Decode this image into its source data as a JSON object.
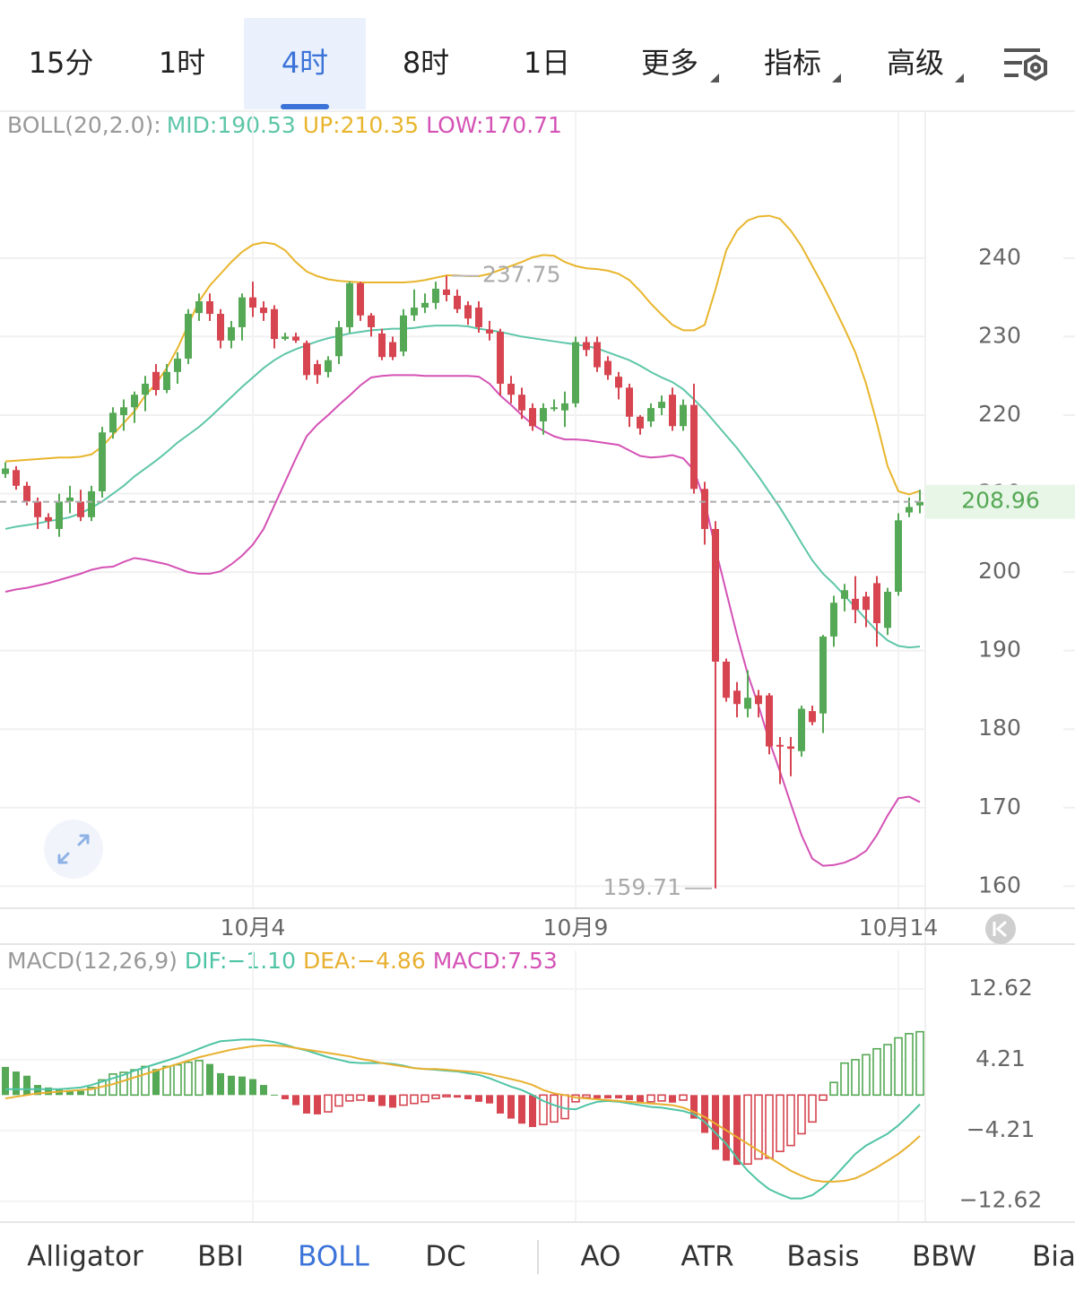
{
  "tabs": [
    "15分",
    "1时",
    "4时",
    "8时",
    "1日",
    "更多",
    "指标",
    "高级"
  ],
  "active_tab": 2,
  "indicator_tabs": [
    "Alligator",
    "BBI",
    "BOLL",
    "DC",
    "AO",
    "ATR",
    "Basis",
    "BBW",
    "Bia"
  ],
  "active_indicator": 2,
  "chart_data": [
    {
      "type": "candlestick",
      "legend_title": "BOLL(20,2.0):",
      "up_color": "#55a855",
      "down_color": "#d64550",
      "categories": [
        null,
        null,
        null,
        null,
        null,
        null,
        null,
        null,
        null,
        null,
        null,
        null,
        null,
        null,
        null,
        null,
        null,
        null,
        null,
        null,
        null,
        null,
        null,
        "10月4",
        null,
        null,
        null,
        null,
        null,
        null,
        null,
        null,
        null,
        null,
        null,
        null,
        null,
        null,
        null,
        null,
        null,
        null,
        null,
        null,
        null,
        null,
        null,
        null,
        null,
        null,
        null,
        null,
        null,
        "10月9",
        null,
        null,
        null,
        null,
        null,
        null,
        null,
        null,
        null,
        null,
        null,
        null,
        null,
        null,
        null,
        null,
        null,
        null,
        null,
        null,
        null,
        null,
        null,
        null,
        null,
        null,
        null,
        null,
        null,
        "10月14",
        null,
        null
      ],
      "open": [
        212.5,
        213,
        211,
        209,
        207,
        205.5,
        209,
        209,
        207,
        210.3,
        217.8,
        220,
        221,
        222.6,
        225.5,
        223.2,
        225.5,
        227.2,
        233,
        234.5,
        232.9,
        229.5,
        231.2,
        235,
        233.7,
        233.5,
        229.7,
        230,
        229.2,
        226.5,
        225.5,
        227.5,
        231.2,
        236.8,
        232.7,
        230.4,
        229.3,
        228.1,
        232.7,
        233.7,
        234.3,
        236,
        235.2,
        234,
        233.7,
        230.9,
        230.6,
        224,
        222.6,
        220.9,
        219.2,
        220.8,
        220.6,
        221.5,
        229.3,
        229.3,
        226.9,
        224.9,
        223.5,
        219.8,
        219.2,
        220.9,
        222.6,
        218.6,
        221.3,
        210.6,
        205.5,
        188.6,
        184.9,
        182.6,
        184.3,
        184.3,
        178,
        177.8,
        177.2,
        182.3,
        182,
        191.8,
        196.6,
        196.6,
        196.9,
        198.6,
        192.9,
        197.5,
        207.6,
        208.5
      ],
      "high": [
        214,
        213.5,
        211.5,
        209.5,
        207.5,
        210,
        211,
        210.5,
        211,
        218.5,
        221,
        222,
        223,
        225,
        226.5,
        226.5,
        228,
        233.5,
        235.5,
        235.5,
        233.5,
        232,
        235.5,
        237,
        234.5,
        234,
        230.5,
        230.5,
        229.5,
        227,
        227.5,
        232,
        237,
        237,
        233,
        231,
        230,
        233.5,
        236,
        235.5,
        237,
        237.75,
        236,
        234.5,
        234.5,
        232,
        231,
        225,
        223.5,
        221.5,
        221.5,
        222,
        223,
        230,
        230,
        230,
        227.5,
        225.5,
        224,
        220,
        221.5,
        222.5,
        223.5,
        222,
        224,
        211.5,
        206.5,
        189,
        186,
        187.5,
        185,
        184.6,
        179,
        179,
        183,
        183,
        192,
        197,
        198.5,
        199.5,
        197.5,
        199.5,
        198,
        207.5,
        209.5,
        210.5
      ],
      "low": [
        212,
        210.5,
        208.5,
        205.5,
        205.5,
        204.5,
        207.5,
        206.5,
        206.5,
        209.5,
        217,
        218,
        219,
        220.5,
        222.5,
        222.8,
        224,
        226.5,
        232,
        232,
        228.5,
        228.5,
        229.5,
        232.5,
        232,
        228.5,
        229.5,
        229.2,
        224.5,
        224,
        224.8,
        226.5,
        230.5,
        232,
        230,
        227,
        227,
        227.5,
        232,
        233,
        233.5,
        234.5,
        233,
        231.5,
        230.5,
        229.5,
        222.5,
        221.5,
        219.5,
        218,
        217.5,
        220.5,
        218.5,
        221,
        227.5,
        225.5,
        224.5,
        222,
        218.5,
        217.5,
        218.5,
        220,
        218,
        218,
        210,
        203.5,
        159.71,
        183.5,
        181.5,
        181.5,
        181.5,
        176.8,
        173,
        174,
        176.5,
        180.5,
        179.5,
        190.5,
        195,
        193.5,
        193,
        190.5,
        192,
        197,
        207,
        207.5
      ],
      "close": [
        213.2,
        211,
        209,
        207,
        206.5,
        209,
        209.5,
        207,
        210.3,
        217.8,
        220.3,
        221,
        222.6,
        224,
        223.2,
        225.5,
        227.2,
        232.9,
        234.5,
        232.9,
        229.5,
        231.2,
        235,
        233.7,
        233,
        229.7,
        230,
        229.5,
        225.1,
        225.1,
        227,
        231.2,
        236.8,
        232.7,
        231.2,
        227.4,
        227.4,
        232.7,
        233.7,
        234.3,
        236.1,
        235.3,
        233.5,
        232.3,
        231.2,
        230.4,
        224,
        222.6,
        220.6,
        218.6,
        220.9,
        221,
        221.5,
        229.3,
        228.3,
        226.1,
        225.1,
        223.5,
        219.8,
        218.3,
        220.9,
        221.7,
        218.6,
        221.3,
        210.6,
        205.5,
        188.6,
        184,
        183.2,
        184,
        183.2,
        177.8,
        177.8,
        177.5,
        182.6,
        180.9,
        191.8,
        196.1,
        197.7,
        195.2,
        195.2,
        193.5,
        197.5,
        206.6,
        208.3,
        208.96
      ],
      "series": [
        {
          "name": "MID:190.53",
          "color": "#5ec6a8",
          "values": [
            205.5,
            205.8,
            206.0,
            206.2,
            206.5,
            206.7,
            207.0,
            207.5,
            208.2,
            209.0,
            210.0,
            211.0,
            212.2,
            213.2,
            214.2,
            215.3,
            216.5,
            217.5,
            218.5,
            219.7,
            221.0,
            222.3,
            223.6,
            224.8,
            226.0,
            227.0,
            227.8,
            228.4,
            228.9,
            229.4,
            229.8,
            230.1,
            230.4,
            230.6,
            230.8,
            230.9,
            231.0,
            231.0,
            231.1,
            231.3,
            231.4,
            231.4,
            231.4,
            231.3,
            231.0,
            230.8,
            230.6,
            230.3,
            230.0,
            229.8,
            229.6,
            229.4,
            229.2,
            229.0,
            228.8,
            228.5,
            228.0,
            227.5,
            227.0,
            226.3,
            225.5,
            224.8,
            224.2,
            223.3,
            222.0,
            220.6,
            219.0,
            217.4,
            215.8,
            214.0,
            212.2,
            210.2,
            208.2,
            206.0,
            203.7,
            201.5,
            199.8,
            198.5,
            197.0,
            195.5,
            194.0,
            192.5,
            191.3,
            190.6,
            190.4,
            190.53
          ]
        },
        {
          "name": "UP:210.35",
          "color": "#e8b52c",
          "values": [
            214.1,
            214.2,
            214.3,
            214.4,
            214.5,
            214.6,
            214.6,
            214.7,
            215.0,
            216.0,
            217.5,
            219,
            220.5,
            222.5,
            224,
            226,
            228.5,
            231.5,
            234.5,
            236.5,
            238,
            239.5,
            240.8,
            241.7,
            242,
            241.8,
            241,
            239.5,
            238.3,
            237.7,
            237.3,
            237.1,
            237,
            236.9,
            236.9,
            236.9,
            236.9,
            236.9,
            237,
            237.2,
            237.5,
            237.8,
            237.8,
            237.7,
            237.7,
            238,
            238.5,
            239,
            239.5,
            240.1,
            240.4,
            240.3,
            239.5,
            239,
            238.7,
            238.6,
            238.4,
            238,
            237.2,
            235.8,
            234.2,
            232.8,
            231.5,
            230.8,
            230.8,
            231.5,
            236,
            241,
            243.5,
            244.8,
            245.3,
            245.4,
            245,
            243.5,
            241.5,
            239,
            236.5,
            233.8,
            231,
            228,
            224,
            219,
            213.5,
            210.3,
            209.9,
            210.35
          ]
        },
        {
          "name": "LOW:170.71",
          "color": "#d452b5",
          "values": [
            197.5,
            197.8,
            198.0,
            198.3,
            198.6,
            199.0,
            199.4,
            199.8,
            200.3,
            200.6,
            200.7,
            201.3,
            201.8,
            201.6,
            201.3,
            201.0,
            200.5,
            200.0,
            199.8,
            199.8,
            200.1,
            201.0,
            202.1,
            203.5,
            205.5,
            208.5,
            211.5,
            214.5,
            217.3,
            218.8,
            220.0,
            221.3,
            222.5,
            223.8,
            224.8,
            225.0,
            225.1,
            225.1,
            225.1,
            225.0,
            225.0,
            225.0,
            225.0,
            225.0,
            224.9,
            224.0,
            222.5,
            221.3,
            220.0,
            218.8,
            218.0,
            217.3,
            216.9,
            216.9,
            216.8,
            216.6,
            216.4,
            216.2,
            215.5,
            214.8,
            214.6,
            214.7,
            214.9,
            214.5,
            213.0,
            209.0,
            203.0,
            197.5,
            192.0,
            187.0,
            183.0,
            178.5,
            174.6,
            170.5,
            166.5,
            163.5,
            162.6,
            162.7,
            163.0,
            163.6,
            164.5,
            166.5,
            169.0,
            171.2,
            171.4,
            170.71
          ]
        }
      ],
      "ylim": [
        157.3,
        258.6
      ],
      "yticks": [
        160,
        170,
        180,
        190,
        200,
        210,
        220,
        230,
        240
      ],
      "grid": true
    },
    {
      "type": "macd",
      "legend_title": "MACD(12,26,9)",
      "name": "MACD:7.53",
      "name_color": "#d452b5",
      "up_color": "#55a855",
      "down_color": "#d64550",
      "values": [
        3.35,
        2.8,
        2.3,
        1.2,
        0.9,
        0.7,
        0.6,
        0.5,
        0.9,
        1.8,
        2.5,
        2.7,
        3.0,
        3.4,
        3.1,
        3.4,
        3.6,
        3.9,
        4.1,
        3.7,
        2.6,
        2.3,
        2.2,
        1.9,
        1.2,
        0.05,
        -0.5,
        -1.2,
        -2.2,
        -2.3,
        -2.0,
        -1.3,
        -0.7,
        -0.6,
        -0.8,
        -1.3,
        -1.5,
        -1.2,
        -1.0,
        -0.8,
        -0.4,
        -0.2,
        -0.3,
        -0.5,
        -0.8,
        -1.0,
        -2.2,
        -2.8,
        -3.4,
        -3.8,
        -3.5,
        -3.2,
        -2.8,
        -0.8,
        -0.3,
        -0.4,
        -0.4,
        -0.4,
        -0.6,
        -0.9,
        -0.8,
        -0.7,
        -0.9,
        -0.6,
        -2.8,
        -4.5,
        -6.5,
        -7.8,
        -8.3,
        -8.2,
        -7.6,
        -7.5,
        -6.7,
        -6.0,
        -4.6,
        -3.2,
        -0.6,
        1.5,
        3.8,
        4.2,
        4.8,
        5.5,
        6.0,
        6.8,
        7.3,
        7.53
      ],
      "series": [
        {
          "name": "DIF:−1.10",
          "color": "#4fc4a5",
          "values": [
            0.7,
            0.7,
            0.7,
            0.7,
            0.7,
            0.7,
            0.8,
            0.9,
            1.2,
            1.6,
            2.0,
            2.4,
            2.9,
            3.3,
            3.7,
            4.1,
            4.5,
            5.0,
            5.5,
            6.0,
            6.4,
            6.5,
            6.6,
            6.6,
            6.5,
            6.3,
            6.0,
            5.6,
            5.3,
            4.9,
            4.5,
            4.2,
            3.9,
            3.8,
            3.8,
            3.8,
            3.7,
            3.5,
            3.2,
            3.1,
            3.0,
            2.9,
            2.8,
            2.6,
            2.4,
            2.0,
            1.5,
            1.0,
            0.6,
            0.0,
            -0.7,
            -1.2,
            -1.6,
            -1.7,
            -1.2,
            -0.8,
            -0.7,
            -0.8,
            -1.0,
            -1.2,
            -1.4,
            -1.5,
            -1.7,
            -1.9,
            -2.3,
            -3.2,
            -4.5,
            -5.8,
            -7.5,
            -9.0,
            -10.2,
            -11.2,
            -11.8,
            -12.3,
            -12.3,
            -11.9,
            -11.0,
            -9.8,
            -8.4,
            -7.0,
            -6.0,
            -5.3,
            -4.6,
            -3.6,
            -2.4,
            -1.1
          ]
        },
        {
          "name": "DEA:−4.86",
          "color": "#e8b030",
          "values": [
            -0.4,
            -0.2,
            0.0,
            0.2,
            0.3,
            0.4,
            0.5,
            0.6,
            0.7,
            1.0,
            1.3,
            1.7,
            2.1,
            2.5,
            2.9,
            3.3,
            3.7,
            4.1,
            4.5,
            4.8,
            5.1,
            5.4,
            5.6,
            5.8,
            5.9,
            5.9,
            5.8,
            5.6,
            5.4,
            5.2,
            5.0,
            4.8,
            4.6,
            4.3,
            4.1,
            3.8,
            3.6,
            3.4,
            3.2,
            3.1,
            3.1,
            3.0,
            2.9,
            2.8,
            2.7,
            2.5,
            2.2,
            1.9,
            1.6,
            1.2,
            0.6,
            0.2,
            0.0,
            -0.3,
            -0.4,
            -0.5,
            -0.6,
            -0.7,
            -0.8,
            -0.9,
            -1.0,
            -1.1,
            -1.2,
            -1.5,
            -2.0,
            -2.6,
            -3.4,
            -4.2,
            -5.0,
            -5.8,
            -6.6,
            -7.4,
            -8.2,
            -9.0,
            -9.6,
            -10.1,
            -10.3,
            -10.3,
            -10.2,
            -9.9,
            -9.3,
            -8.6,
            -7.8,
            -7.0,
            -6.0,
            -4.86
          ]
        }
      ],
      "ylim": [
        -15,
        17.2
      ],
      "yticks": [
        12.62,
        4.21,
        {
          "value": -4.21,
          "label": "−4.21"
        },
        {
          "value": -12.62,
          "label": "−12.62"
        }
      ],
      "grid": true
    }
  ]
}
